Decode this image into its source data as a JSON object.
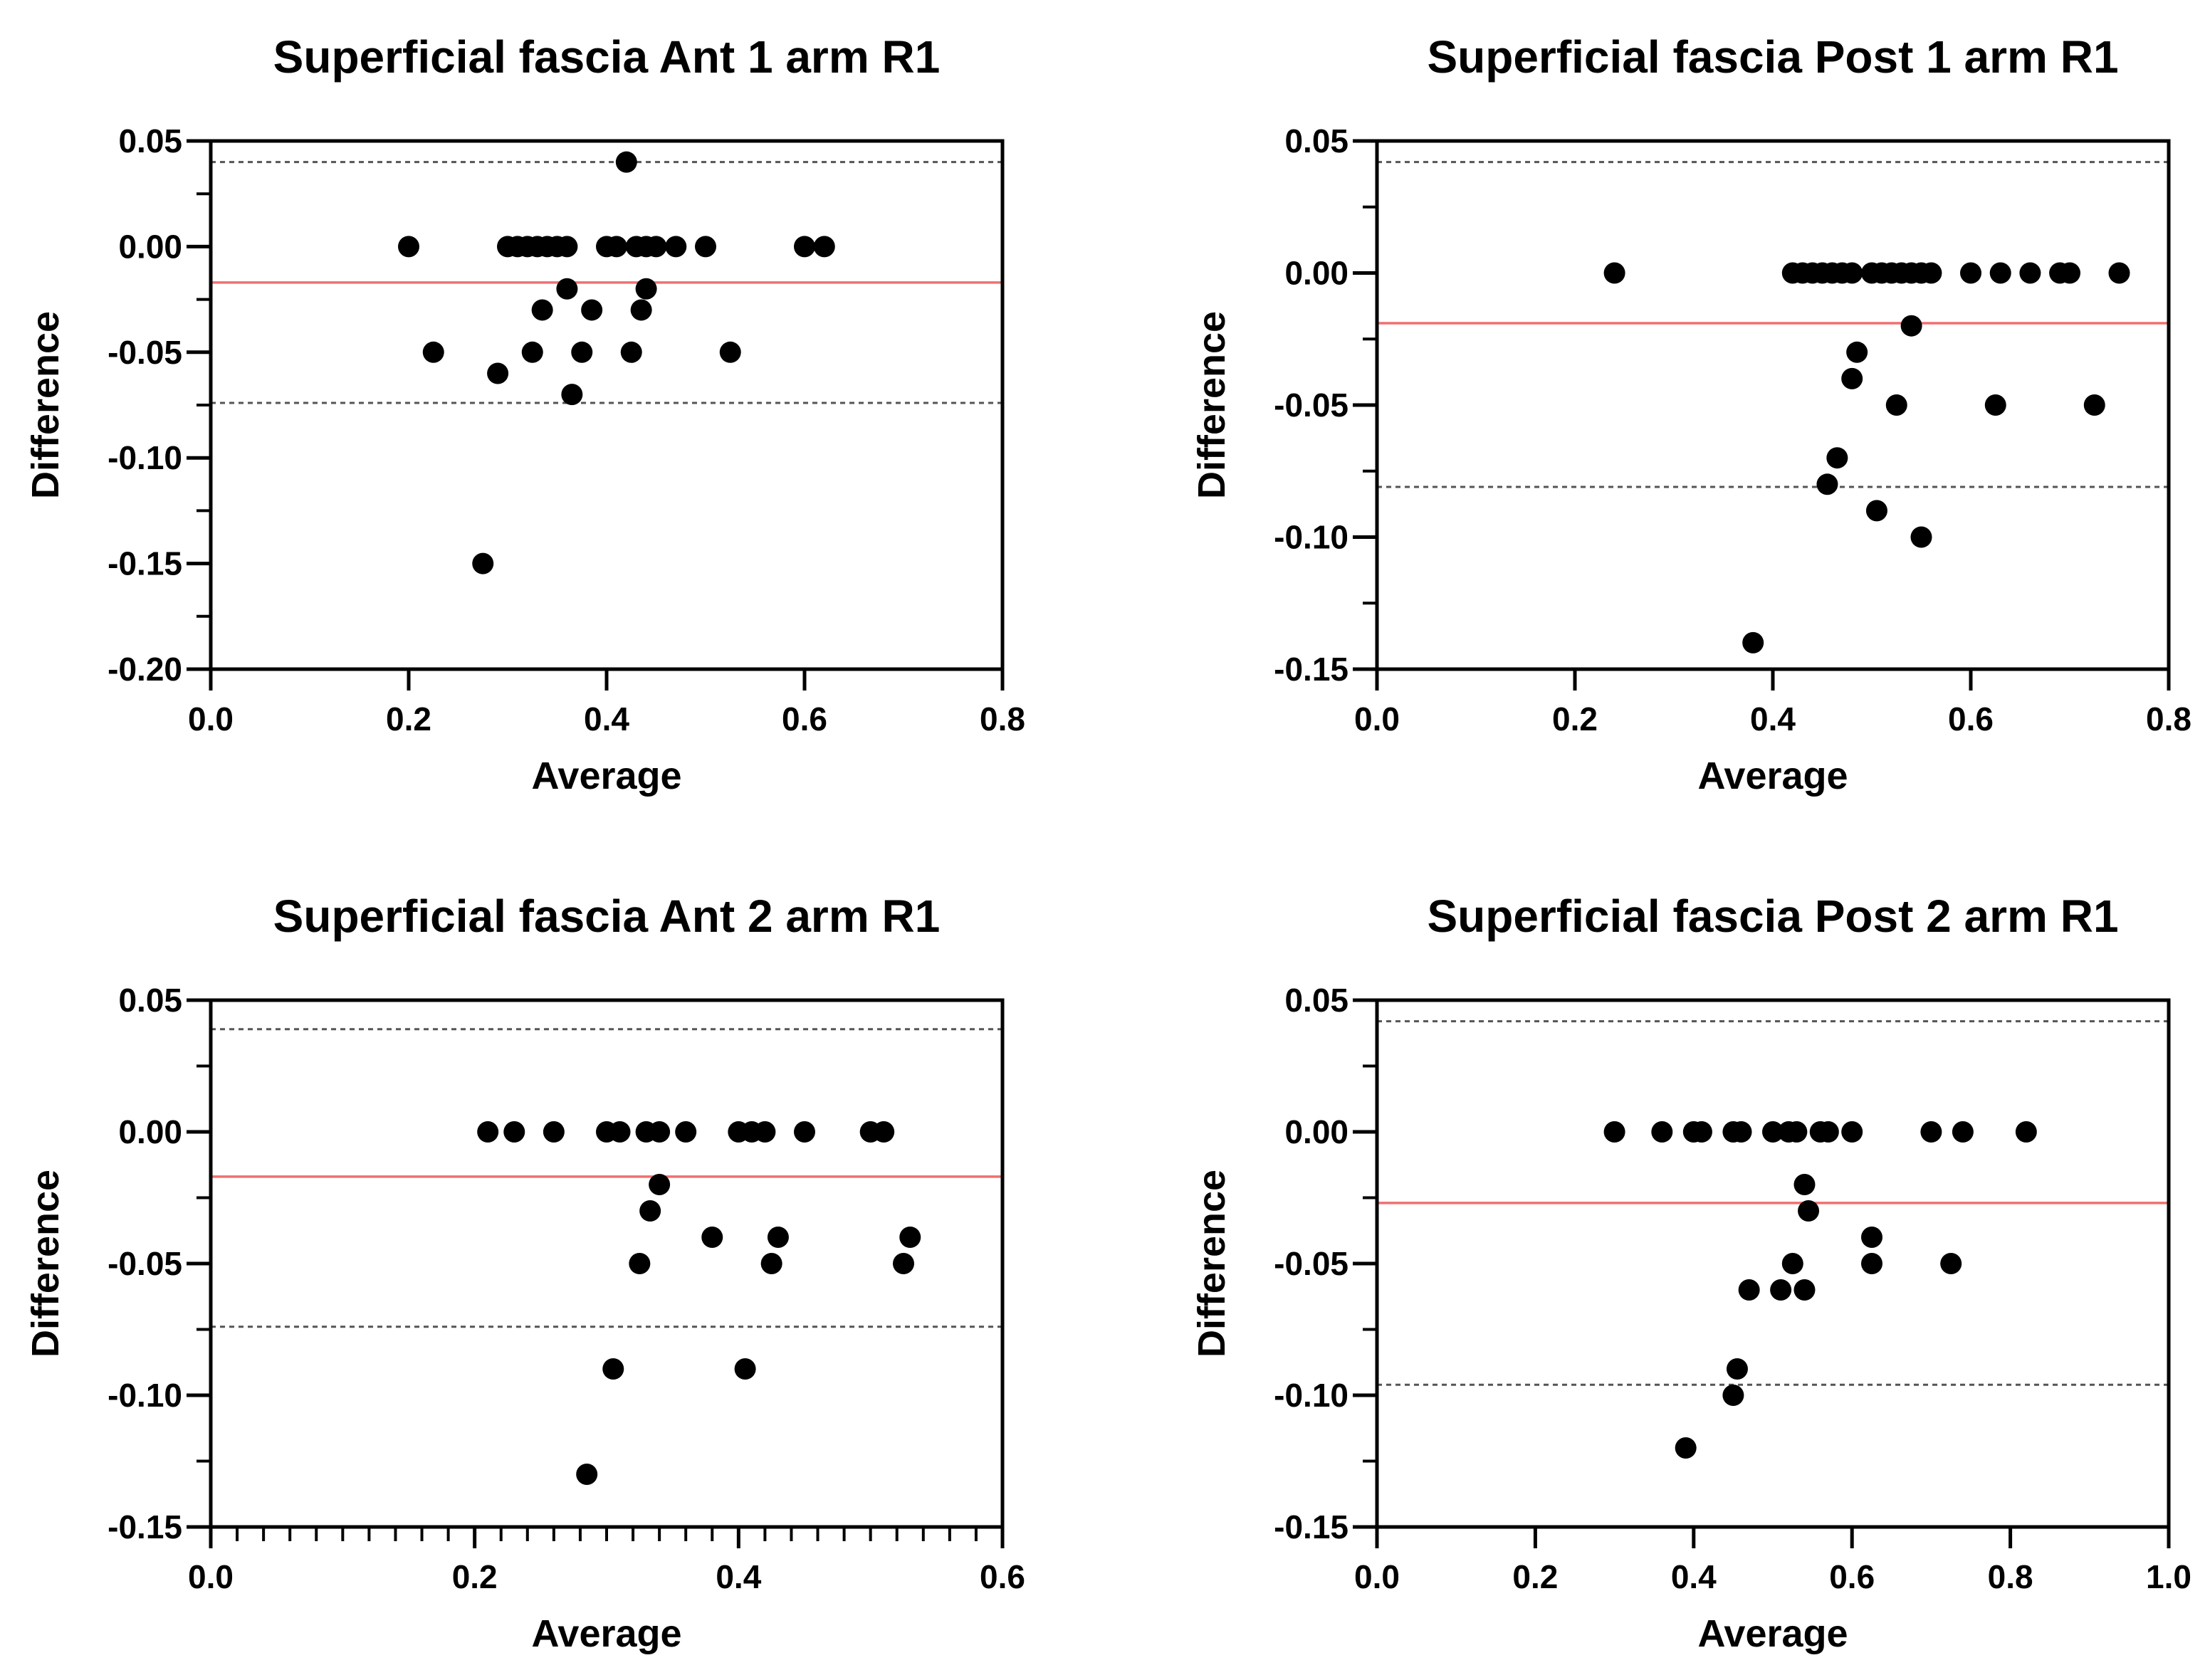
{
  "figure": {
    "colors": {
      "mean_line": "#f07070",
      "limit_lines": "#555555",
      "points": "#000000",
      "axes": "#000000"
    }
  },
  "chart_data": [
    {
      "type": "scatter",
      "title": "Superficial fascia Ant 1 arm R1",
      "xlabel": "Average",
      "ylabel": "Difference",
      "xlim": [
        0,
        0.8
      ],
      "ylim": [
        -0.2,
        0.05
      ],
      "xticks": [
        "0.0",
        "0.2",
        "0.4",
        "0.6",
        "0.8"
      ],
      "yticks": [
        "0.05",
        "0.00",
        "-0.05",
        "-0.10",
        "-0.15",
        "-0.20"
      ],
      "minor_x_ticks": false,
      "mean_difference": -0.017,
      "upper_limit": 0.04,
      "lower_limit": -0.074,
      "points": [
        [
          0.2,
          0.0
        ],
        [
          0.225,
          -0.05
        ],
        [
          0.275,
          -0.15
        ],
        [
          0.29,
          -0.06
        ],
        [
          0.3,
          0.0
        ],
        [
          0.31,
          0.0
        ],
        [
          0.32,
          0.0
        ],
        [
          0.325,
          -0.05
        ],
        [
          0.33,
          0.0
        ],
        [
          0.335,
          -0.03
        ],
        [
          0.34,
          0.0
        ],
        [
          0.35,
          0.0
        ],
        [
          0.36,
          0.0
        ],
        [
          0.36,
          -0.02
        ],
        [
          0.365,
          -0.07
        ],
        [
          0.375,
          -0.05
        ],
        [
          0.385,
          -0.03
        ],
        [
          0.4,
          0.0
        ],
        [
          0.41,
          0.0
        ],
        [
          0.42,
          0.04
        ],
        [
          0.425,
          -0.05
        ],
        [
          0.43,
          0.0
        ],
        [
          0.435,
          -0.03
        ],
        [
          0.44,
          0.0
        ],
        [
          0.44,
          -0.02
        ],
        [
          0.45,
          0.0
        ],
        [
          0.47,
          0.0
        ],
        [
          0.5,
          0.0
        ],
        [
          0.525,
          -0.05
        ],
        [
          0.6,
          0.0
        ],
        [
          0.62,
          0.0
        ]
      ]
    },
    {
      "type": "scatter",
      "title": "Superficial fascia Post 1 arm R1",
      "xlabel": "Average",
      "ylabel": "Difference",
      "xlim": [
        0,
        0.8
      ],
      "ylim": [
        -0.15,
        0.05
      ],
      "xticks": [
        "0.0",
        "0.2",
        "0.4",
        "0.6",
        "0.8"
      ],
      "yticks": [
        "0.05",
        "0.00",
        "-0.05",
        "-0.10",
        "-0.15"
      ],
      "minor_x_ticks": false,
      "mean_difference": -0.019,
      "upper_limit": 0.042,
      "lower_limit": -0.081,
      "points": [
        [
          0.24,
          0.0
        ],
        [
          0.38,
          -0.14
        ],
        [
          0.42,
          0.0
        ],
        [
          0.43,
          0.0
        ],
        [
          0.44,
          0.0
        ],
        [
          0.45,
          0.0
        ],
        [
          0.455,
          -0.08
        ],
        [
          0.46,
          0.0
        ],
        [
          0.465,
          -0.07
        ],
        [
          0.47,
          0.0
        ],
        [
          0.48,
          0.0
        ],
        [
          0.48,
          -0.04
        ],
        [
          0.485,
          -0.03
        ],
        [
          0.5,
          0.0
        ],
        [
          0.505,
          -0.09
        ],
        [
          0.51,
          0.0
        ],
        [
          0.52,
          0.0
        ],
        [
          0.525,
          -0.05
        ],
        [
          0.53,
          0.0
        ],
        [
          0.54,
          0.0
        ],
        [
          0.54,
          -0.02
        ],
        [
          0.55,
          0.0
        ],
        [
          0.55,
          -0.1
        ],
        [
          0.56,
          0.0
        ],
        [
          0.6,
          0.0
        ],
        [
          0.625,
          -0.05
        ],
        [
          0.63,
          0.0
        ],
        [
          0.66,
          0.0
        ],
        [
          0.69,
          0.0
        ],
        [
          0.7,
          0.0
        ],
        [
          0.725,
          -0.05
        ],
        [
          0.75,
          0.0
        ]
      ]
    },
    {
      "type": "scatter",
      "title": "Superficial fascia Ant 2 arm R1",
      "xlabel": "Average",
      "ylabel": "Difference",
      "xlim": [
        0,
        0.6
      ],
      "ylim": [
        -0.15,
        0.05
      ],
      "xticks": [
        "0.0",
        "0.2",
        "0.4",
        "0.6"
      ],
      "yticks": [
        "0.05",
        "0.00",
        "-0.05",
        "-0.10",
        "-0.15"
      ],
      "minor_x_ticks": true,
      "mean_difference": -0.017,
      "upper_limit": 0.039,
      "lower_limit": -0.074,
      "points": [
        [
          0.21,
          0.0
        ],
        [
          0.23,
          0.0
        ],
        [
          0.26,
          0.0
        ],
        [
          0.285,
          -0.13
        ],
        [
          0.3,
          0.0
        ],
        [
          0.305,
          -0.09
        ],
        [
          0.31,
          0.0
        ],
        [
          0.325,
          -0.05
        ],
        [
          0.33,
          0.0
        ],
        [
          0.333,
          -0.03
        ],
        [
          0.34,
          0.0
        ],
        [
          0.34,
          -0.02
        ],
        [
          0.36,
          0.0
        ],
        [
          0.38,
          -0.04
        ],
        [
          0.4,
          0.0
        ],
        [
          0.405,
          -0.09
        ],
        [
          0.41,
          0.0
        ],
        [
          0.42,
          0.0
        ],
        [
          0.425,
          -0.05
        ],
        [
          0.43,
          -0.04
        ],
        [
          0.45,
          0.0
        ],
        [
          0.5,
          0.0
        ],
        [
          0.51,
          0.0
        ],
        [
          0.525,
          -0.05
        ],
        [
          0.53,
          -0.04
        ]
      ]
    },
    {
      "type": "scatter",
      "title": "Superficial fascia Post 2 arm R1",
      "xlabel": "Average",
      "ylabel": "Difference",
      "xlim": [
        0,
        1.0
      ],
      "ylim": [
        -0.15,
        0.05
      ],
      "xticks": [
        "0.0",
        "0.2",
        "0.4",
        "0.6",
        "0.8",
        "1.0"
      ],
      "yticks": [
        "0.05",
        "0.00",
        "-0.05",
        "-0.10",
        "-0.15"
      ],
      "minor_x_ticks": false,
      "mean_difference": -0.027,
      "upper_limit": 0.042,
      "lower_limit": -0.096,
      "points": [
        [
          0.3,
          0.0
        ],
        [
          0.36,
          0.0
        ],
        [
          0.39,
          -0.12
        ],
        [
          0.4,
          0.0
        ],
        [
          0.41,
          0.0
        ],
        [
          0.45,
          0.0
        ],
        [
          0.45,
          -0.1
        ],
        [
          0.455,
          -0.09
        ],
        [
          0.46,
          0.0
        ],
        [
          0.47,
          -0.06
        ],
        [
          0.5,
          0.0
        ],
        [
          0.51,
          -0.06
        ],
        [
          0.52,
          0.0
        ],
        [
          0.525,
          -0.05
        ],
        [
          0.53,
          0.0
        ],
        [
          0.54,
          -0.02
        ],
        [
          0.54,
          -0.06
        ],
        [
          0.545,
          -0.03
        ],
        [
          0.56,
          0.0
        ],
        [
          0.57,
          0.0
        ],
        [
          0.6,
          0.0
        ],
        [
          0.625,
          -0.04
        ],
        [
          0.625,
          -0.05
        ],
        [
          0.7,
          0.0
        ],
        [
          0.725,
          -0.05
        ],
        [
          0.74,
          0.0
        ],
        [
          0.82,
          0.0
        ]
      ]
    }
  ]
}
